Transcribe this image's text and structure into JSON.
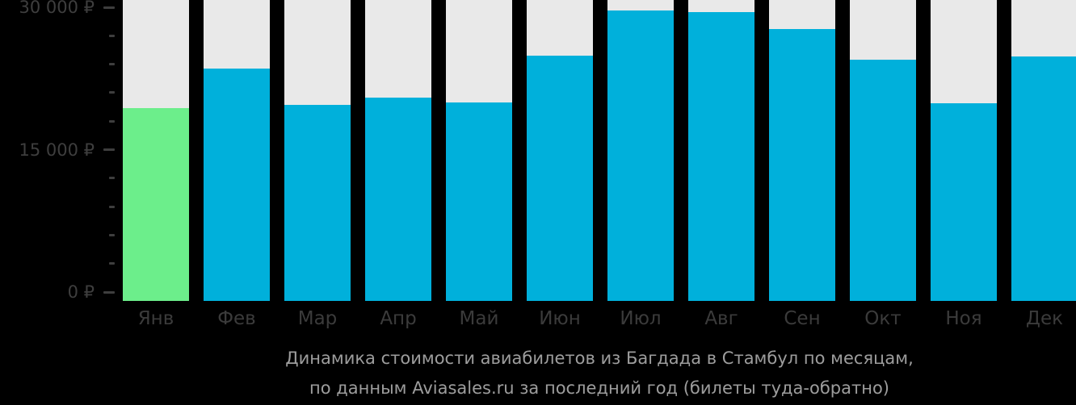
{
  "chart_data": {
    "type": "bar",
    "title": "Динамика стоимости авиабилетов из Багдада в Стамбул по месяцам, по данным Aviasales.ru за последний год (билеты туда-обратно)",
    "title_line1": "Динамика стоимости авиабилетов из Багдада в Стамбул по месяцам,",
    "title_line2": "по данным Aviasales.ru за последний год (билеты туда-обратно)",
    "categories": [
      "Янв",
      "Фев",
      "Мар",
      "Апр",
      "Май",
      "Июн",
      "Июл",
      "Авг",
      "Сен",
      "Окт",
      "Ноя",
      "Дек"
    ],
    "values": [
      19400,
      23500,
      19700,
      20500,
      20000,
      24900,
      29700,
      29500,
      27700,
      24500,
      19900,
      24800
    ],
    "unit": "₽",
    "ylim": [
      0,
      30000
    ],
    "y_major_ticks": [
      {
        "value": 0,
        "label": "0 ₽"
      },
      {
        "value": 15000,
        "label": "15 000 ₽"
      },
      {
        "value": 30000,
        "label": "30 000 ₽"
      }
    ],
    "y_minor_step": 3000,
    "grid": false,
    "legend": "none",
    "highlight_index": 0,
    "colors": {
      "bar": "#00b0db",
      "highlight_bar": "#6cee8b",
      "track": "#e9e9e9",
      "background": "#000000",
      "axis_text": "#3e3e3e",
      "title_text": "#9d9d9d"
    }
  }
}
